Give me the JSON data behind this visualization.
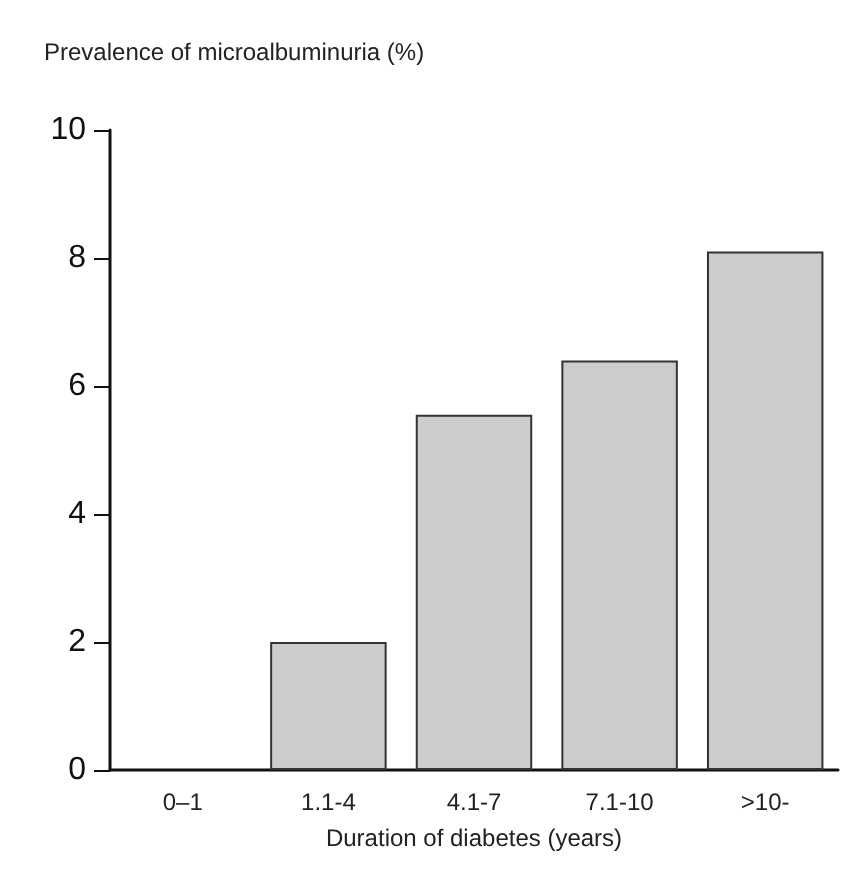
{
  "chart_data": {
    "type": "bar",
    "ylabel": "Prevalence of microalbuminuria (%)",
    "xlabel": "Duration of diabetes (years)",
    "categories": [
      "0–1",
      "1.1-4",
      "4.1-7",
      "7.1-10",
      ">10-"
    ],
    "values": [
      0,
      2.0,
      5.55,
      6.4,
      8.1
    ],
    "color": "#cccccc",
    "ylim": [
      0,
      10
    ],
    "yticks": [
      0,
      2,
      4,
      6,
      8,
      10
    ],
    "grid": false
  }
}
